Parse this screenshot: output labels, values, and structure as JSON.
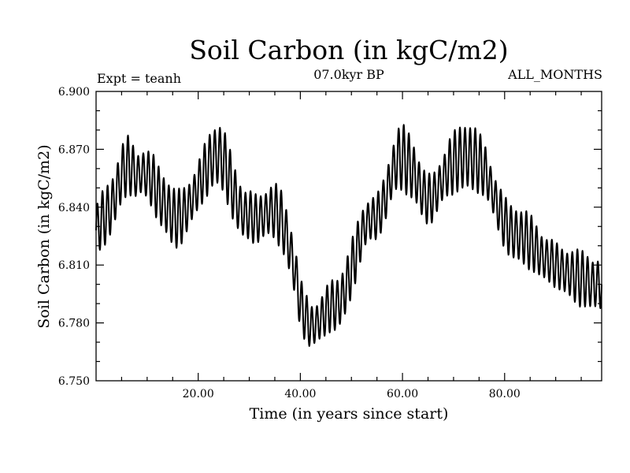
{
  "chart_data": {
    "type": "line",
    "title": "Soil Carbon (in kgC/m2)",
    "subtitle_left": "Expt = teanh",
    "subtitle_center": "07.0kyr BP",
    "subtitle_right": "ALL_MONTHS",
    "xlabel": "Time (in years since start)",
    "ylabel": "Soil Carbon (in kgC/m2)",
    "xlim": [
      0,
      99
    ],
    "ylim": [
      6.75,
      6.9
    ],
    "x_ticks": [
      20,
      40,
      60,
      80
    ],
    "x_tick_labels": [
      "20.00",
      "40.00",
      "60.00",
      "80.00"
    ],
    "y_ticks": [
      6.75,
      6.78,
      6.81,
      6.84,
      6.87,
      6.9
    ],
    "y_tick_labels": [
      "6.750",
      "6.780",
      "6.810",
      "6.840",
      "6.870",
      "6.900"
    ],
    "grid": false,
    "line_color": "#000000",
    "series": [
      {
        "x": [
          0,
          1,
          2,
          3,
          4,
          5,
          6,
          7,
          8,
          9,
          10,
          11,
          12,
          13,
          14,
          15,
          16,
          17,
          18,
          19,
          20,
          21,
          22,
          23,
          24,
          25,
          26,
          27,
          28,
          29,
          30,
          31,
          32,
          33,
          34,
          35,
          36,
          37,
          38,
          39,
          40,
          41,
          42,
          43,
          44,
          45,
          46,
          47,
          48,
          49,
          50,
          51,
          52,
          53,
          54,
          55,
          56,
          57,
          58,
          59,
          60,
          61,
          62,
          63,
          64,
          65,
          66,
          67,
          68,
          69,
          70,
          71,
          72,
          73,
          74,
          75,
          76,
          77,
          78,
          79,
          80,
          81,
          82,
          83,
          84,
          85,
          86,
          87,
          88,
          89,
          90,
          91,
          92,
          93,
          94,
          95,
          96,
          97,
          98,
          99
        ],
        "y_mean": [
          6.828,
          6.833,
          6.836,
          6.84,
          6.848,
          6.857,
          6.862,
          6.86,
          6.856,
          6.858,
          6.857,
          6.854,
          6.848,
          6.843,
          6.839,
          6.835,
          6.834,
          6.836,
          6.84,
          6.845,
          6.851,
          6.857,
          6.862,
          6.866,
          6.867,
          6.864,
          6.856,
          6.847,
          6.84,
          6.836,
          6.836,
          6.834,
          6.834,
          6.836,
          6.838,
          6.838,
          6.835,
          6.828,
          6.818,
          6.806,
          6.79,
          6.783,
          6.778,
          6.779,
          6.782,
          6.786,
          6.789,
          6.789,
          6.792,
          6.799,
          6.808,
          6.817,
          6.826,
          6.832,
          6.834,
          6.835,
          6.84,
          6.848,
          6.858,
          6.865,
          6.866,
          6.863,
          6.859,
          6.853,
          6.847,
          6.844,
          6.845,
          6.85,
          6.855,
          6.86,
          6.863,
          6.865,
          6.866,
          6.866,
          6.865,
          6.863,
          6.86,
          6.853,
          6.845,
          6.838,
          6.832,
          6.828,
          6.826,
          6.825,
          6.824,
          6.822,
          6.819,
          6.815,
          6.813,
          6.812,
          6.81,
          6.808,
          6.806,
          6.805,
          6.804,
          6.803,
          6.802,
          6.8,
          6.8,
          6.8
        ],
        "amplitude": [
          0.012,
          0.012,
          0.012,
          0.012,
          0.013,
          0.014,
          0.015,
          0.014,
          0.013,
          0.013,
          0.013,
          0.013,
          0.013,
          0.013,
          0.013,
          0.013,
          0.013,
          0.013,
          0.013,
          0.013,
          0.013,
          0.014,
          0.015,
          0.015,
          0.015,
          0.014,
          0.013,
          0.013,
          0.013,
          0.013,
          0.013,
          0.013,
          0.013,
          0.013,
          0.013,
          0.013,
          0.013,
          0.012,
          0.012,
          0.012,
          0.012,
          0.012,
          0.012,
          0.012,
          0.012,
          0.012,
          0.012,
          0.012,
          0.012,
          0.012,
          0.012,
          0.012,
          0.012,
          0.012,
          0.012,
          0.012,
          0.012,
          0.013,
          0.013,
          0.014,
          0.014,
          0.014,
          0.014,
          0.013,
          0.013,
          0.013,
          0.013,
          0.013,
          0.013,
          0.014,
          0.014,
          0.014,
          0.015,
          0.015,
          0.015,
          0.014,
          0.014,
          0.013,
          0.013,
          0.013,
          0.013,
          0.013,
          0.013,
          0.012,
          0.012,
          0.012,
          0.012,
          0.012,
          0.012,
          0.012,
          0.012,
          0.012,
          0.012,
          0.012,
          0.012,
          0.012,
          0.012,
          0.012,
          0.012,
          0.012
        ],
        "cycle_period_years": 1
      }
    ]
  }
}
